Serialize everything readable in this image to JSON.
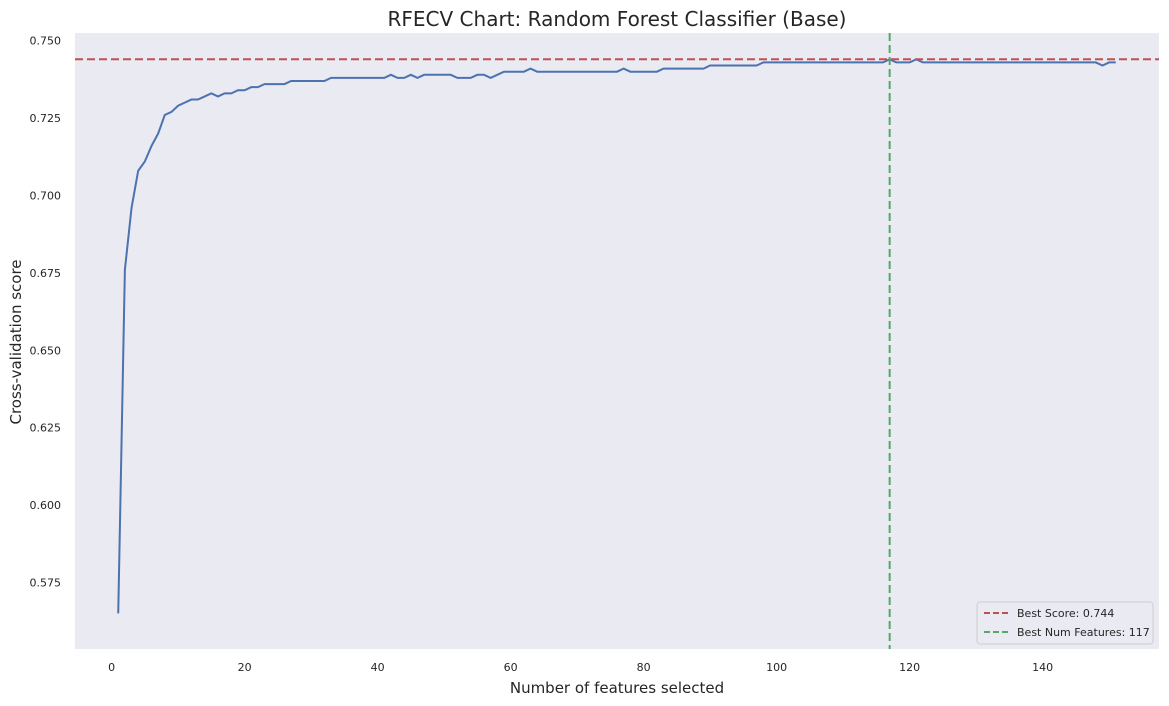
{
  "chart_data": {
    "type": "line",
    "title": "RFECV Chart: Random Forest Classifier (Base)",
    "xlabel": "Number of features selected",
    "ylabel": "Cross-validation score",
    "xlim": [
      -5.5,
      157.5
    ],
    "ylim": [
      0.5535,
      0.7525
    ],
    "xticks": [
      0,
      20,
      40,
      60,
      80,
      100,
      120,
      140
    ],
    "yticks": [
      0.575,
      0.6,
      0.625,
      0.65,
      0.675,
      0.7,
      0.725,
      0.75
    ],
    "ytick_labels": [
      "0.575",
      "0.600",
      "0.625",
      "0.650",
      "0.675",
      "0.700",
      "0.725",
      "0.750"
    ],
    "grid": false,
    "background": "#eaeaf2",
    "line_color": "#4c72b0",
    "best_score": 0.744,
    "best_num_features": 117,
    "best_score_color": "#c44e52",
    "best_features_color": "#55a868",
    "legend": {
      "position": "lower-right",
      "entries": [
        {
          "label": "Best Score: 0.744",
          "color": "#c44e52"
        },
        {
          "label": "Best Num Features: 117",
          "color": "#55a868"
        }
      ]
    },
    "series": [
      {
        "x": [
          1,
          2,
          3,
          4,
          5,
          6,
          7,
          8,
          9,
          10,
          11,
          12,
          13,
          14,
          15,
          16,
          17,
          18,
          19,
          20,
          21,
          22,
          23,
          24,
          25,
          26,
          27,
          28,
          29,
          30,
          31,
          32,
          33,
          34,
          35,
          36,
          37,
          38,
          39,
          40,
          41,
          42,
          43,
          44,
          45,
          46,
          47,
          48,
          49,
          50,
          51,
          52,
          53,
          54,
          55,
          56,
          57,
          58,
          59,
          60,
          61,
          62,
          63,
          64,
          65,
          66,
          67,
          68,
          69,
          70,
          71,
          72,
          73,
          74,
          75,
          76,
          77,
          78,
          79,
          80,
          81,
          82,
          83,
          84,
          85,
          86,
          87,
          88,
          89,
          90,
          91,
          92,
          93,
          94,
          95,
          96,
          97,
          98,
          99,
          100,
          101,
          102,
          103,
          104,
          105,
          106,
          107,
          108,
          109,
          110,
          111,
          112,
          113,
          114,
          115,
          116,
          117,
          118,
          119,
          120,
          121,
          122,
          123,
          124,
          125,
          126,
          127,
          128,
          129,
          130,
          131,
          132,
          133,
          134,
          135,
          136,
          137,
          138,
          139,
          140,
          141,
          142,
          143,
          144,
          145,
          146,
          147,
          148,
          149,
          150,
          151
        ],
        "values": [
          0.565,
          0.676,
          0.696,
          0.708,
          0.711,
          0.716,
          0.72,
          0.726,
          0.727,
          0.729,
          0.73,
          0.731,
          0.731,
          0.732,
          0.733,
          0.732,
          0.733,
          0.733,
          0.734,
          0.734,
          0.735,
          0.735,
          0.736,
          0.736,
          0.736,
          0.736,
          0.737,
          0.737,
          0.737,
          0.737,
          0.737,
          0.737,
          0.738,
          0.738,
          0.738,
          0.738,
          0.738,
          0.738,
          0.738,
          0.738,
          0.738,
          0.739,
          0.738,
          0.738,
          0.739,
          0.738,
          0.739,
          0.739,
          0.739,
          0.739,
          0.739,
          0.738,
          0.738,
          0.738,
          0.739,
          0.739,
          0.738,
          0.739,
          0.74,
          0.74,
          0.74,
          0.74,
          0.741,
          0.74,
          0.74,
          0.74,
          0.74,
          0.74,
          0.74,
          0.74,
          0.74,
          0.74,
          0.74,
          0.74,
          0.74,
          0.74,
          0.741,
          0.74,
          0.74,
          0.74,
          0.74,
          0.74,
          0.741,
          0.741,
          0.741,
          0.741,
          0.741,
          0.741,
          0.741,
          0.742,
          0.742,
          0.742,
          0.742,
          0.742,
          0.742,
          0.742,
          0.742,
          0.743,
          0.743,
          0.743,
          0.743,
          0.743,
          0.743,
          0.743,
          0.743,
          0.743,
          0.743,
          0.743,
          0.743,
          0.743,
          0.743,
          0.743,
          0.743,
          0.743,
          0.743,
          0.743,
          0.744,
          0.743,
          0.743,
          0.743,
          0.744,
          0.743,
          0.743,
          0.743,
          0.743,
          0.743,
          0.743,
          0.743,
          0.743,
          0.743,
          0.743,
          0.743,
          0.743,
          0.743,
          0.743,
          0.743,
          0.743,
          0.743,
          0.743,
          0.743,
          0.743,
          0.743,
          0.743,
          0.743,
          0.743,
          0.743,
          0.743,
          0.743,
          0.742,
          0.743,
          0.743
        ]
      }
    ]
  }
}
